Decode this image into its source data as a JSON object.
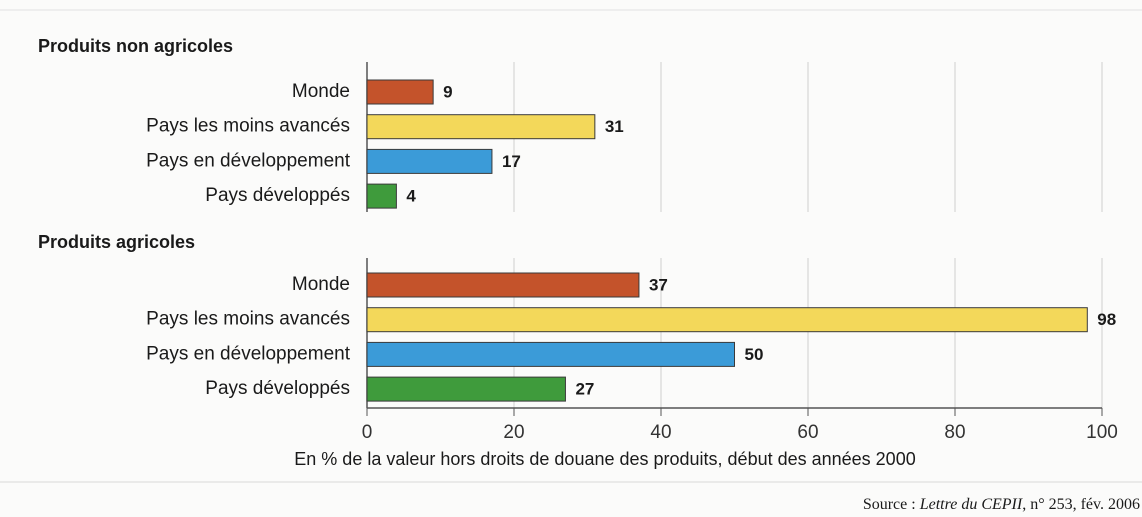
{
  "chart_data": [
    {
      "type": "bar",
      "title": "Produits non agricoles",
      "categories": [
        "Monde",
        "Pays les moins avancés",
        "Pays en développement",
        "Pays développés"
      ],
      "values": [
        9,
        31,
        17,
        4
      ],
      "colors": [
        "#c4532b",
        "#f3d85a",
        "#3b9bd8",
        "#3f9b3c"
      ],
      "xlim": [
        0,
        100
      ],
      "xticks": [
        0,
        20,
        40,
        60,
        80,
        100
      ],
      "grid": true
    },
    {
      "type": "bar",
      "title": "Produits agricoles",
      "categories": [
        "Monde",
        "Pays les moins avancés",
        "Pays en développement",
        "Pays développés"
      ],
      "values": [
        37,
        98,
        50,
        27
      ],
      "colors": [
        "#c4532b",
        "#f3d85a",
        "#3b9bd8",
        "#3f9b3c"
      ],
      "xlim": [
        0,
        100
      ],
      "xticks": [
        0,
        20,
        40,
        60,
        80,
        100
      ],
      "grid": true,
      "xlabel": "En % de la valeur hors droits de douane des produits, début des années 2000"
    }
  ],
  "source": [
    "Source : ",
    "Lettre du CEPII",
    ", n° 253, fév. 2006"
  ]
}
